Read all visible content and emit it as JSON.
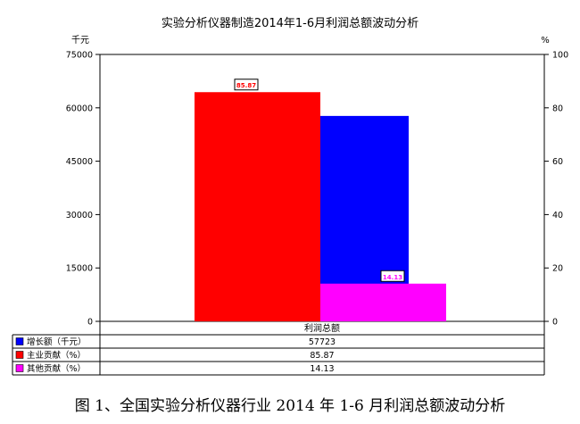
{
  "caption": "图 1、全国实验分析仪器行业 2014 年 1-6 月利润总额波动分析",
  "chart_data": {
    "type": "bar",
    "title": "实验分析仪器制造2014年1-6月利润总额波动分析",
    "category": "利润总额",
    "left_axis": {
      "unit": "千元",
      "min": 0,
      "max": 75000,
      "ticks": [
        "0",
        "15000",
        "30000",
        "45000",
        "60000",
        "75000"
      ]
    },
    "right_axis": {
      "unit": "%",
      "min": 0,
      "max": 100,
      "ticks": [
        "0",
        "20",
        "40",
        "60",
        "80",
        "100"
      ]
    },
    "grid": false,
    "legend": "table-below",
    "series": [
      {
        "name": "增长额（千元）",
        "value": 57723,
        "display": "57723",
        "axis": "left",
        "color": "#0000ff",
        "stacked": false
      },
      {
        "name": "主业贡献（%）",
        "value": 85.87,
        "display": "85.87",
        "axis": "right",
        "color": "#ff0000",
        "stacked": true,
        "label": "85.87"
      },
      {
        "name": "其他贡献（%）",
        "value": 14.13,
        "display": "14.13",
        "axis": "right",
        "color": "#ff00ff",
        "stacked": true,
        "label": "14.13"
      }
    ]
  }
}
